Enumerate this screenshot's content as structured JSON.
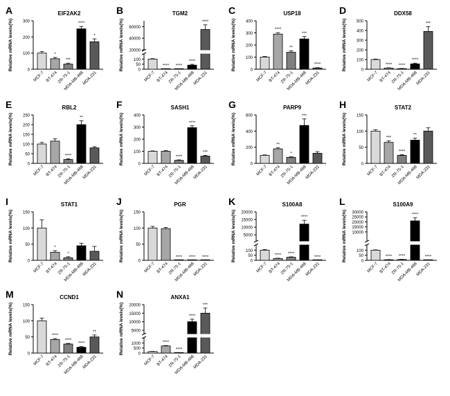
{
  "figure": {
    "categories": [
      "MCF-7",
      "BT-474",
      "ZR-75-1",
      "MDA-MB-468",
      "MDA-231"
    ],
    "ylabel": "Relative mRNA levels(%)",
    "bar_colors": [
      "#d9d9d9",
      "#a6a6a6",
      "#7f7f7f",
      "#000000",
      "#595959"
    ]
  },
  "chart_data": [
    {
      "type": "bar",
      "letter": "A",
      "title": "EIF2AK2",
      "ylim": [
        0,
        300
      ],
      "yticks": [
        0,
        100,
        200,
        300
      ],
      "values": [
        100,
        65,
        32,
        250,
        170
      ],
      "errors": [
        10,
        8,
        6,
        15,
        18
      ],
      "sig": [
        "",
        "*",
        "***",
        "****",
        "*"
      ]
    },
    {
      "type": "bar",
      "letter": "B",
      "title": "TGM2",
      "axis_break": true,
      "lower_ylim": [
        0,
        150
      ],
      "lower_yticks": [
        0,
        50,
        100
      ],
      "upper_ylim": [
        20000,
        70000
      ],
      "upper_yticks": [
        20000,
        40000,
        60000
      ],
      "values": [
        100,
        3,
        3,
        40,
        55000
      ],
      "errors": [
        4,
        1,
        1,
        8,
        8000
      ],
      "sig": [
        "",
        "****",
        "****",
        "****",
        "****"
      ]
    },
    {
      "type": "bar",
      "letter": "C",
      "title": "USP18",
      "ylim": [
        0,
        400
      ],
      "yticks": [
        0,
        100,
        200,
        300,
        400
      ],
      "values": [
        100,
        290,
        140,
        250,
        10
      ],
      "errors": [
        5,
        12,
        12,
        20,
        3
      ],
      "sig": [
        "",
        "****",
        "**",
        "***",
        "****"
      ]
    },
    {
      "type": "bar",
      "letter": "D",
      "title": "DDX58",
      "ylim": [
        0,
        500
      ],
      "yticks": [
        0,
        100,
        200,
        300,
        400,
        500
      ],
      "values": [
        100,
        12,
        6,
        55,
        390
      ],
      "errors": [
        5,
        3,
        2,
        8,
        50
      ],
      "sig": [
        "",
        "****",
        "****",
        "****",
        "***"
      ]
    },
    {
      "type": "bar",
      "letter": "E",
      "title": "RBL2",
      "ylim": [
        0,
        250
      ],
      "yticks": [
        0,
        50,
        100,
        150,
        200,
        250
      ],
      "values": [
        100,
        115,
        20,
        200,
        80
      ],
      "errors": [
        8,
        12,
        4,
        20,
        6
      ],
      "sig": [
        "",
        "",
        "****",
        "**",
        ""
      ]
    },
    {
      "type": "bar",
      "letter": "F",
      "title": "SASH1",
      "ylim": [
        0,
        400
      ],
      "yticks": [
        0,
        100,
        200,
        300,
        400
      ],
      "values": [
        100,
        100,
        25,
        295,
        60
      ],
      "errors": [
        3,
        5,
        4,
        15,
        6
      ],
      "sig": [
        "",
        "",
        "****",
        "****",
        "***"
      ]
    },
    {
      "type": "bar",
      "letter": "G",
      "title": "PARP9",
      "ylim": [
        0,
        600
      ],
      "yticks": [
        0,
        200,
        400,
        600
      ],
      "values": [
        100,
        180,
        75,
        470,
        125
      ],
      "errors": [
        5,
        15,
        6,
        80,
        20
      ],
      "sig": [
        "",
        "**",
        "*",
        "***",
        ""
      ]
    },
    {
      "type": "bar",
      "letter": "H",
      "title": "STAT2",
      "ylim": [
        0,
        150
      ],
      "yticks": [
        0,
        50,
        100,
        150
      ],
      "values": [
        100,
        65,
        25,
        72,
        100
      ],
      "errors": [
        4,
        5,
        2,
        6,
        10
      ],
      "sig": [
        "",
        "***",
        "****",
        "**",
        ""
      ]
    },
    {
      "type": "bar",
      "letter": "I",
      "title": "STAT1",
      "ylim": [
        0,
        150
      ],
      "yticks": [
        0,
        50,
        100,
        150
      ],
      "values": [
        100,
        25,
        8,
        45,
        28
      ],
      "errors": [
        25,
        5,
        3,
        8,
        15
      ],
      "sig": [
        "",
        "*",
        "*",
        "",
        ""
      ]
    },
    {
      "type": "bar",
      "letter": "J",
      "title": "PGR",
      "ylim": [
        0,
        150
      ],
      "yticks": [
        0,
        50,
        100,
        150
      ],
      "values": [
        100,
        98,
        0.5,
        0.5,
        0.5
      ],
      "errors": [
        5,
        4,
        0,
        0,
        0
      ],
      "sig": [
        "",
        "",
        "****",
        "****",
        "****"
      ]
    },
    {
      "type": "bar",
      "letter": "K",
      "title": "S100A8",
      "axis_break": true,
      "lower_ylim": [
        0,
        150
      ],
      "lower_yticks": [
        0,
        50,
        100
      ],
      "upper_ylim": [
        1000,
        20000
      ],
      "upper_yticks": [
        5000,
        10000,
        15000,
        20000
      ],
      "values": [
        100,
        18,
        30,
        12000,
        1
      ],
      "errors": [
        6,
        3,
        4,
        2500,
        0
      ],
      "sig": [
        "",
        "****",
        "****",
        "****",
        "****"
      ]
    },
    {
      "type": "bar",
      "letter": "L",
      "title": "S100A9",
      "axis_break": true,
      "lower_ylim": [
        0,
        150
      ],
      "lower_yticks": [
        0,
        50,
        100
      ],
      "upper_ylim": [
        1000,
        30000
      ],
      "upper_yticks": [
        10000,
        15000,
        20000,
        25000,
        30000
      ],
      "values": [
        100,
        5,
        8,
        21000,
        2
      ],
      "errors": [
        3,
        2,
        2,
        3000,
        1
      ],
      "sig": [
        "",
        "****",
        "****",
        "****",
        "****"
      ]
    },
    {
      "type": "bar",
      "letter": "M",
      "title": "CCND1",
      "ylim": [
        0,
        150
      ],
      "yticks": [
        0,
        50,
        100,
        150
      ],
      "values": [
        100,
        42,
        28,
        18,
        50
      ],
      "errors": [
        8,
        3,
        2,
        2,
        6
      ],
      "sig": [
        "",
        "****",
        "****",
        "****",
        "**"
      ]
    },
    {
      "type": "bar",
      "letter": "N",
      "title": "ANXA1",
      "axis_break": true,
      "lower_ylim": [
        0,
        1500
      ],
      "lower_yticks": [
        0,
        500,
        1000
      ],
      "upper_ylim": [
        3000,
        20000
      ],
      "upper_yticks": [
        5000,
        10000,
        15000,
        20000
      ],
      "values": [
        150,
        700,
        20,
        10000,
        15000
      ],
      "errors": [
        20,
        40,
        5,
        1500,
        3000
      ],
      "sig": [
        "",
        "****",
        "****",
        "****",
        "***"
      ]
    }
  ]
}
